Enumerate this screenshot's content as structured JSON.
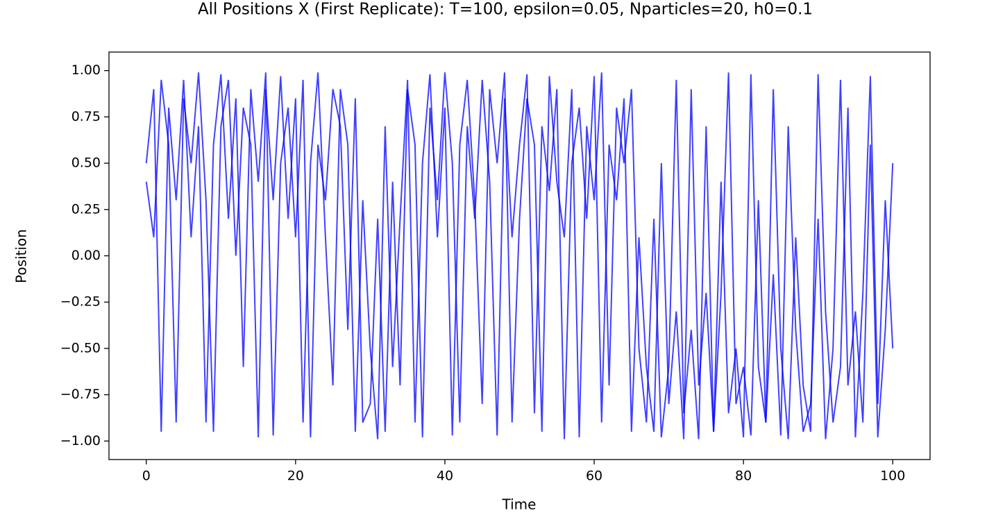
{
  "chart_data": {
    "type": "line",
    "title": "All Positions X (First Replicate): T=100, epsilon=0.05, Nparticles=20, h0=0.1",
    "x_label": "Time",
    "y_label": "Position",
    "xlim": [
      -5,
      105
    ],
    "ylim": [
      -1.1,
      1.1
    ],
    "xticks": [
      0,
      20,
      40,
      60,
      80,
      100
    ],
    "yticks": [
      {
        "value": -1,
        "label": "−1.00"
      },
      {
        "value": -0.75,
        "label": "−0.75"
      },
      {
        "value": -0.5,
        "label": "−0.50"
      },
      {
        "value": -0.25,
        "label": "−0.25"
      },
      {
        "value": 0,
        "label": "0.00"
      },
      {
        "value": 0.25,
        "label": "0.25"
      },
      {
        "value": 0.5,
        "label": "0.50"
      },
      {
        "value": 0.75,
        "label": "0.75"
      },
      {
        "value": 1,
        "label": "1.00"
      }
    ],
    "x": [
      0,
      1,
      2,
      3,
      4,
      5,
      6,
      7,
      8,
      9,
      10,
      11,
      12,
      13,
      14,
      15,
      16,
      17,
      18,
      19,
      20,
      21,
      22,
      23,
      24,
      25,
      26,
      27,
      28,
      29,
      30,
      31,
      32,
      33,
      34,
      35,
      36,
      37,
      38,
      39,
      40,
      41,
      42,
      43,
      44,
      45,
      46,
      47,
      48,
      49,
      50,
      51,
      52,
      53,
      54,
      55,
      56,
      57,
      58,
      59,
      60,
      61,
      62,
      63,
      64,
      65,
      66,
      67,
      68,
      69,
      70,
      71,
      72,
      73,
      74,
      75,
      76,
      77,
      78,
      79,
      80,
      81,
      82,
      83,
      84,
      85,
      86,
      87,
      88,
      89,
      90,
      91,
      92,
      93,
      94,
      95,
      96,
      97,
      98,
      99,
      100
    ],
    "series": [
      {
        "color": "#0000ff",
        "values": [
          0.5,
          0.9,
          -0.95,
          0.8,
          0.3,
          0.95,
          0.1,
          0.7,
          -0.9,
          0.6,
          0.98,
          0.2,
          0.85,
          -0.6,
          0.9,
          0.4,
          0.99,
          -0.97,
          0.5,
          0.8,
          0.1,
          0.95,
          -0.98,
          0.6,
          0.3,
          0.9,
          0.7,
          -0.4,
          0.85,
          -0.9,
          -0.8,
          0.2,
          -0.95,
          0.4,
          -0.7,
          0.9,
          0.6,
          -0.98,
          0.8,
          0.3,
          0.99,
          0.5,
          -0.9,
          0.7,
          0.2,
          0.95,
          0.4,
          -0.97,
          0.85,
          0.1,
          0.6,
          0.98,
          -0.85,
          0.7,
          0.35,
          0.9,
          -0.99,
          0.5,
          0.8,
          0.2,
          0.97,
          -0.9,
          0.6,
          0.3,
          0.85,
          -0.95,
          0.1,
          -0.6,
          -0.95,
          0.5,
          -0.8,
          -0.3,
          -0.99,
          0.9,
          -0.7,
          -0.2,
          -0.95,
          0.4,
          -0.85,
          -0.5,
          -0.98,
          0.98,
          -0.6,
          -0.9,
          -0.1,
          -0.97,
          0.7,
          -0.4,
          -0.95,
          -0.8,
          0.2,
          -0.99,
          -0.5,
          0.95,
          -0.7,
          -0.3,
          -0.9,
          0.6,
          -0.98,
          -0.4,
          0.5
        ]
      },
      {
        "color": "#0000ff",
        "values": [
          0.4,
          0.1,
          0.95,
          0.6,
          -0.9,
          0.85,
          0.5,
          0.99,
          0.3,
          -0.95,
          0.7,
          0.95,
          0.0,
          0.8,
          0.6,
          -0.98,
          0.9,
          0.3,
          0.97,
          0.2,
          0.85,
          -0.9,
          0.5,
          0.99,
          0.1,
          -0.7,
          0.9,
          0.6,
          -0.95,
          0.3,
          -0.5,
          -0.99,
          0.7,
          -0.6,
          0.2,
          0.95,
          -0.9,
          0.5,
          0.98,
          0.1,
          0.8,
          -0.97,
          0.6,
          0.95,
          0.3,
          -0.8,
          0.9,
          0.5,
          0.99,
          -0.9,
          0.2,
          0.85,
          0.6,
          -0.95,
          0.97,
          0.4,
          0.1,
          0.9,
          -0.98,
          0.7,
          0.3,
          0.99,
          -0.7,
          0.8,
          0.5,
          0.9,
          -0.5,
          -0.9,
          0.2,
          -0.98,
          -0.6,
          0.95,
          -0.85,
          -0.4,
          -0.99,
          0.7,
          -0.95,
          -0.2,
          0.99,
          -0.8,
          -0.6,
          -0.97,
          0.3,
          -0.9,
          0.9,
          -0.5,
          -0.99,
          0.1,
          -0.7,
          -0.95,
          0.98,
          -0.3,
          -0.9,
          -0.6,
          0.8,
          -0.98,
          -0.2,
          0.97,
          -0.8,
          0.3,
          -0.5
        ]
      }
    ]
  }
}
